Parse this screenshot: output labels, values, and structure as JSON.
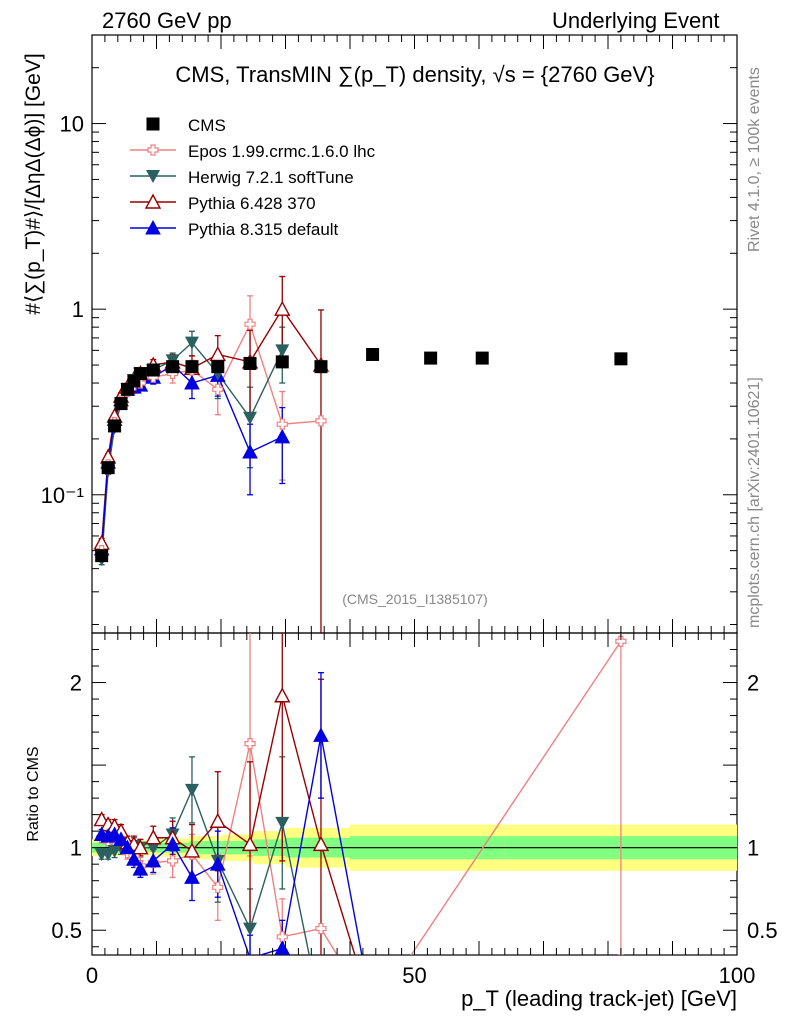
{
  "header": {
    "left": "2760 GeV pp",
    "right": "Underlying Event"
  },
  "side_labels": {
    "rivet": "Rivet 4.1.0, ≥ 100k events",
    "mcplots": "mcplots.cern.ch [arXiv:2401.10621]"
  },
  "colors": {
    "cms": "#000000",
    "epos": "#f08080",
    "herwig": "#2a6060",
    "pythia6": "#990000",
    "pythia8": "#0000e0",
    "band_inner": "#80ff80",
    "band_outer": "#ffff80"
  },
  "chart_data": [
    {
      "type": "scatter",
      "scale": "log",
      "title": "CMS, TransMIN ∑(p_T) density, √s = {2760 GeV}",
      "ylabel": "#⟨∑(p_T)#⟩/[ΔηΔ(Δϕ)] [GeV]",
      "xlim": [
        0,
        100
      ],
      "ylim": [
        0.018,
        30
      ],
      "yticks": [
        {
          "value": 0.1,
          "label": "10⁻¹"
        },
        {
          "value": 1,
          "label": "1"
        },
        {
          "value": 10,
          "label": "10"
        }
      ],
      "analysis_tag": "(CMS_2015_I1385107)",
      "legend": [
        {
          "key": "cms",
          "label": "CMS"
        },
        {
          "key": "epos",
          "label": "Epos 1.99.crmc.1.6.0 lhc"
        },
        {
          "key": "herwig",
          "label": "Herwig 7.2.1 softTune"
        },
        {
          "key": "pythia6",
          "label": "Pythia 6.428 370"
        },
        {
          "key": "pythia8",
          "label": "Pythia 8.315 default"
        }
      ],
      "series": [
        {
          "key": "cms",
          "name": "CMS",
          "marker": "square",
          "x": [
            1.5,
            2.5,
            3.5,
            4.5,
            5.5,
            6.5,
            7.5,
            9.5,
            12.5,
            15.5,
            19.5,
            24.5,
            29.5,
            35.5,
            43.5,
            52.5,
            60.5,
            82
          ],
          "y": [
            0.047,
            0.14,
            0.235,
            0.31,
            0.37,
            0.41,
            0.45,
            0.47,
            0.49,
            0.49,
            0.49,
            0.51,
            0.52,
            0.49,
            0.57,
            0.545,
            0.545,
            0.54
          ]
        },
        {
          "key": "epos",
          "name": "Epos 1.99.crmc.1.6.0 lhc",
          "marker": "cross",
          "x": [
            1.5,
            2.5,
            3.5,
            4.5,
            5.5,
            6.5,
            7.5,
            9.5,
            12.5,
            15.5,
            19.5,
            24.5,
            29.5,
            35.5
          ],
          "y": [
            0.05,
            0.145,
            0.245,
            0.32,
            0.36,
            0.39,
            0.4,
            0.43,
            0.45,
            0.47,
            0.37,
            0.83,
            0.24,
            0.25
          ],
          "err": [
            0.003,
            0.006,
            0.01,
            0.014,
            0.017,
            0.02,
            0.025,
            0.035,
            0.05,
            0.06,
            0.1,
            0.35,
            0.12,
            0
          ]
        },
        {
          "key": "herwig",
          "name": "Herwig 7.2.1 softTune",
          "marker": "triangle-down",
          "x": [
            1.5,
            2.5,
            3.5,
            4.5,
            5.5,
            6.5,
            7.5,
            9.5,
            12.5,
            15.5,
            19.5,
            24.5,
            29.5
          ],
          "y": [
            0.045,
            0.135,
            0.23,
            0.31,
            0.37,
            0.415,
            0.45,
            0.47,
            0.53,
            0.66,
            0.45,
            0.26,
            0.6
          ],
          "err": [
            0.003,
            0.006,
            0.01,
            0.014,
            0.017,
            0.02,
            0.025,
            0.035,
            0.05,
            0.1,
            0.12,
            0.12,
            0.2
          ]
        },
        {
          "key": "pythia6",
          "name": "Pythia 6.428 370",
          "marker": "triangle-up-open",
          "x": [
            1.5,
            2.5,
            3.5,
            4.5,
            5.5,
            6.5,
            7.5,
            9.5,
            12.5,
            15.5,
            19.5,
            24.5,
            29.5,
            35.5
          ],
          "y": [
            0.055,
            0.16,
            0.265,
            0.34,
            0.38,
            0.42,
            0.45,
            0.5,
            0.52,
            0.48,
            0.57,
            0.52,
            1.0,
            0.5
          ],
          "err": [
            0.003,
            0.006,
            0.01,
            0.014,
            0.017,
            0.02,
            0.025,
            0.035,
            0.05,
            0.08,
            0.15,
            0.25,
            0.5,
            0.49
          ]
        },
        {
          "key": "pythia8",
          "name": "Pythia 8.315 default",
          "marker": "triangle-up",
          "x": [
            1.5,
            2.5,
            3.5,
            4.5,
            5.5,
            6.5,
            7.5,
            9.5,
            12.5,
            15.5,
            19.5,
            24.5,
            29.5
          ],
          "y": [
            0.051,
            0.15,
            0.255,
            0.325,
            0.37,
            0.38,
            0.39,
            0.43,
            0.5,
            0.4,
            0.44,
            0.17,
            0.205
          ],
          "err": [
            0.003,
            0.006,
            0.01,
            0.014,
            0.017,
            0.02,
            0.025,
            0.035,
            0.05,
            0.07,
            0.1,
            0.07,
            0.09
          ]
        }
      ]
    },
    {
      "type": "line",
      "title": "Ratio to CMS",
      "xlabel": "p_T (leading track-jet) [GeV]",
      "ylabel": "Ratio to CMS",
      "xlim": [
        0,
        100
      ],
      "ylim": [
        0.35,
        2.3
      ],
      "xticks": [
        0,
        50,
        100
      ],
      "yticks": [
        {
          "value": 0.5,
          "label": "0.5"
        },
        {
          "value": 1,
          "label": "1"
        },
        {
          "value": 2,
          "label": "2"
        }
      ],
      "band": {
        "x_edges": [
          0,
          5,
          10,
          15,
          20,
          25,
          30,
          40,
          50,
          64,
          100
        ],
        "inner": [
          0.03,
          0.025,
          0.03,
          0.04,
          0.04,
          0.05,
          0.06,
          0.07,
          0.07,
          0.07
        ],
        "outer": [
          0.05,
          0.045,
          0.055,
          0.07,
          0.08,
          0.1,
          0.12,
          0.14,
          0.14,
          0.14
        ]
      },
      "series": [
        {
          "key": "epos",
          "marker": "cross",
          "x": [
            1.5,
            2.5,
            3.5,
            4.5,
            5.5,
            6.5,
            7.5,
            9.5,
            12.5,
            15.5,
            19.5,
            24.5,
            29.5,
            35.5,
            43.5,
            82
          ],
          "y": [
            1.06,
            1.04,
            1.04,
            1.03,
            0.97,
            0.95,
            0.89,
            0.91,
            0.92,
            0.96,
            0.76,
            1.63,
            0.46,
            0.51,
            0.0,
            2.25
          ],
          "err": [
            0.03,
            0.03,
            0.04,
            0.04,
            0.04,
            0.05,
            0.05,
            0.07,
            0.1,
            0.12,
            0.2,
            0.68,
            0.23,
            0,
            0,
            1.9
          ]
        },
        {
          "key": "herwig",
          "marker": "triangle-down",
          "x": [
            1.5,
            2.5,
            3.5,
            4.5,
            5.5,
            6.5,
            7.5,
            9.5,
            12.5,
            15.5,
            19.5,
            24.5,
            29.5,
            35.5
          ],
          "y": [
            0.96,
            0.96,
            0.98,
            1.0,
            1.0,
            1.01,
            1.0,
            1.0,
            1.08,
            1.35,
            0.92,
            0.51,
            1.15,
            0.0
          ],
          "err": [
            0.03,
            0.03,
            0.04,
            0.04,
            0.04,
            0.05,
            0.05,
            0.07,
            0.1,
            0.2,
            0.25,
            0.24,
            0.4,
            0
          ]
        },
        {
          "key": "pythia6",
          "marker": "triangle-up-open",
          "x": [
            1.5,
            2.5,
            3.5,
            4.5,
            5.5,
            6.5,
            7.5,
            9.5,
            12.5,
            15.5,
            19.5,
            24.5,
            29.5,
            35.5,
            43.5
          ],
          "y": [
            1.17,
            1.14,
            1.13,
            1.1,
            1.03,
            1.02,
            1.0,
            1.06,
            1.06,
            0.98,
            1.16,
            1.02,
            1.92,
            1.02,
            0.0
          ],
          "err": [
            0.03,
            0.03,
            0.04,
            0.04,
            0.04,
            0.05,
            0.05,
            0.07,
            0.1,
            0.16,
            0.3,
            0.5,
            1.0,
            1.0,
            0
          ]
        },
        {
          "key": "pythia8",
          "marker": "triangle-up",
          "x": [
            1.5,
            2.5,
            3.5,
            4.5,
            5.5,
            6.5,
            7.5,
            9.5,
            12.5,
            15.5,
            19.5,
            24.5,
            29.5,
            35.5,
            43.5
          ],
          "y": [
            1.08,
            1.07,
            1.08,
            1.05,
            1.0,
            0.93,
            0.87,
            0.92,
            1.02,
            0.82,
            0.9,
            0.33,
            0.39,
            1.68,
            0.0
          ],
          "err": [
            0.03,
            0.03,
            0.04,
            0.04,
            0.04,
            0.05,
            0.05,
            0.07,
            0.1,
            0.14,
            0.2,
            0.14,
            0.17,
            0.38,
            0
          ]
        }
      ]
    }
  ]
}
